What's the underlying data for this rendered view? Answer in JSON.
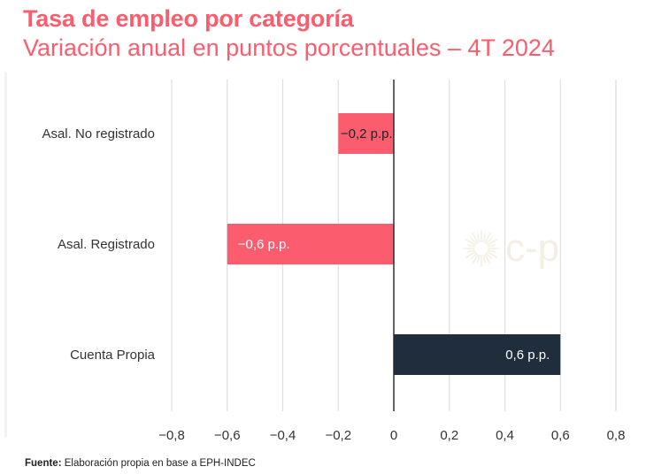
{
  "chart_data": {
    "type": "bar",
    "orientation": "horizontal",
    "title": "Tasa de empleo por categoría",
    "subtitle": "Variación anual en puntos porcentuales – 4T 2024",
    "categories": [
      "Asal. No registrado",
      "Asal. Registrado",
      "Cuenta Propia"
    ],
    "values": [
      -0.2,
      -0.6,
      0.6
    ],
    "data_labels": [
      "−0,2 p.p.",
      "−0,6 p.p.",
      "0,6 p.p."
    ],
    "bar_colors": [
      "#fb5d6e",
      "#fb5d6e",
      "#1f2d3d"
    ],
    "xlim": [
      -0.8,
      0.8
    ],
    "xticks": [
      -0.8,
      -0.6,
      -0.4,
      -0.2,
      0,
      0.2,
      0.4,
      0.6,
      0.8
    ],
    "xtick_labels": [
      "−0,8",
      "−0,6",
      "−0,4",
      "−0,2",
      "0",
      "0,2",
      "0,4",
      "0,6",
      "0,8"
    ],
    "grid": true,
    "xlabel": "",
    "ylabel": ""
  },
  "source": {
    "label": "Fuente:",
    "text": "Elaboración propia en base a EPH-INDEC"
  },
  "watermark": {
    "text": "c-p"
  },
  "colors": {
    "accent": "#fb5d6e",
    "dark": "#1f2d3d",
    "grid": "#dedede",
    "axis": "#222222",
    "tick_text": "#333333"
  }
}
